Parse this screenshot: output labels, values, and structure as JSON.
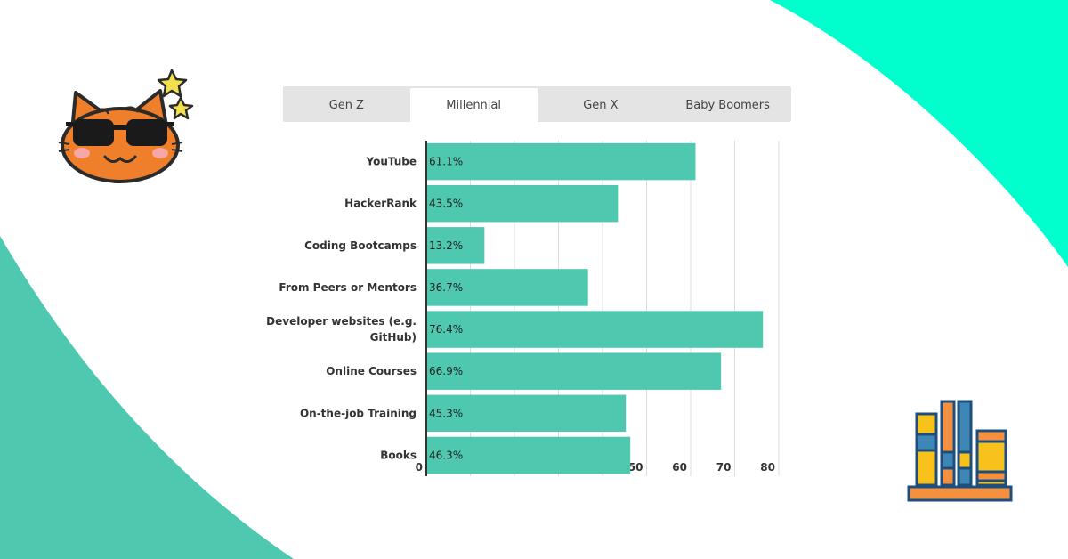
{
  "tabs": [
    {
      "label": "Gen Z",
      "active": false
    },
    {
      "label": "Millennial",
      "active": true
    },
    {
      "label": "Gen X",
      "active": false
    },
    {
      "label": "Baby Boomers",
      "active": false
    }
  ],
  "colors": {
    "bar": "#4ec9b0",
    "accent_top_right": "#00ffcc",
    "accent_bottom_left": "#4ec9b0"
  },
  "icons": [
    "cat-sunglasses-icon",
    "star-icon",
    "books-icon"
  ],
  "chart_data": {
    "type": "bar",
    "orientation": "horizontal",
    "categories": [
      "YouTube",
      "HackerRank",
      "Coding Bootcamps",
      "From Peers or Mentors",
      "Developer websites (e.g. GitHub)",
      "Online Courses",
      "On-the-job Training",
      "Books"
    ],
    "category_lines": [
      [
        "YouTube"
      ],
      [
        "HackerRank"
      ],
      [
        "Coding Bootcamps"
      ],
      [
        "From Peers or Mentors"
      ],
      [
        "Developer websites (e.g.",
        "GitHub)"
      ],
      [
        "Online Courses"
      ],
      [
        "On-the-job Training"
      ],
      [
        "Books"
      ]
    ],
    "values": [
      61.1,
      43.5,
      13.2,
      36.7,
      76.4,
      66.9,
      45.3,
      46.3
    ],
    "value_labels": [
      "61.1%",
      "43.5%",
      "13.2%",
      "36.7%",
      "76.4%",
      "66.9%",
      "45.3%",
      "46.3%"
    ],
    "xlim": [
      0,
      80
    ],
    "xticks": [
      "0",
      "10",
      "20",
      "30",
      "40",
      "50",
      "60",
      "70",
      "80"
    ],
    "grid": true
  }
}
